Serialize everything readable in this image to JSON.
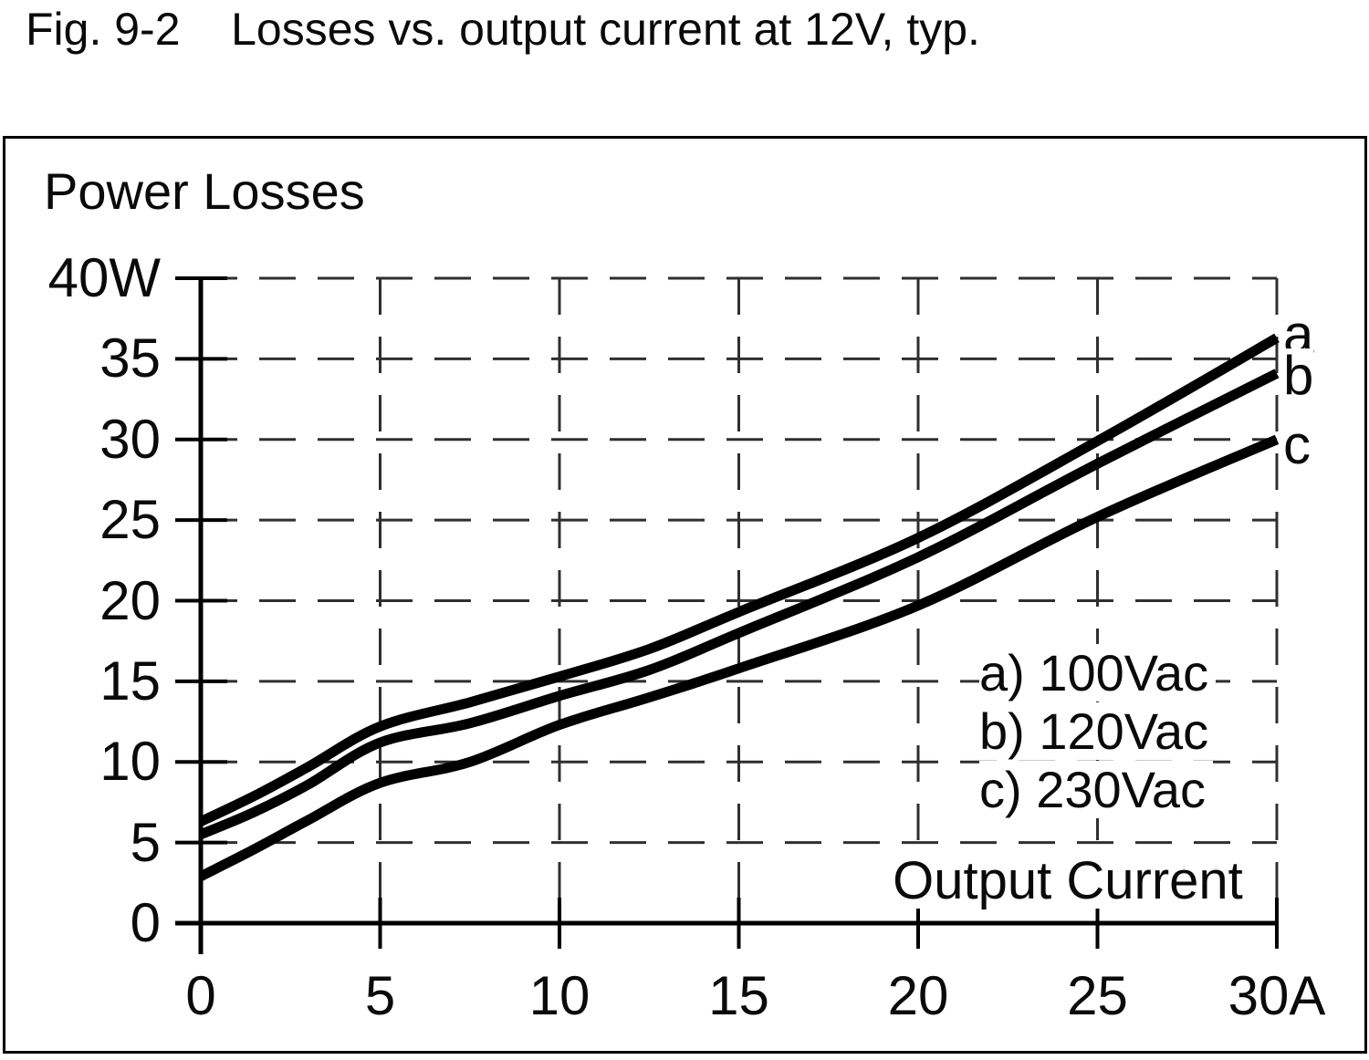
{
  "title": "Fig. 9-2    Losses vs. output current at 12V, typ.",
  "chart_data": {
    "type": "line",
    "title": "Power Losses",
    "xlabel": "Output Current",
    "ylabel": "Power Losses",
    "x_unit": "A",
    "y_unit": "W",
    "xlim": [
      0,
      30
    ],
    "ylim": [
      0,
      40
    ],
    "x_ticks": [
      0,
      5,
      10,
      15,
      20,
      25,
      30
    ],
    "x_tick_labels": [
      "0",
      "5",
      "10",
      "15",
      "20",
      "25",
      "30A"
    ],
    "y_ticks": [
      0,
      5,
      10,
      15,
      20,
      25,
      30,
      35,
      40
    ],
    "y_tick_labels": [
      "0",
      "5",
      "10",
      "15",
      "20",
      "25",
      "30",
      "35",
      "40W"
    ],
    "grid": "dashed",
    "legend_position": "inside-right",
    "x": [
      0,
      1.5,
      3,
      5,
      7.5,
      10,
      12.5,
      15,
      20,
      25,
      30
    ],
    "series": [
      {
        "name": "a",
        "label": "a) 100Vac",
        "values": [
          6.3,
          7.9,
          9.7,
          12.2,
          13.7,
          15.3,
          17.0,
          19.3,
          23.9,
          29.9,
          36.3
        ]
      },
      {
        "name": "b",
        "label": "b) 120Vac",
        "values": [
          5.5,
          6.9,
          8.6,
          11.2,
          12.4,
          14.1,
          15.7,
          18.0,
          22.7,
          28.5,
          34.1
        ]
      },
      {
        "name": "c",
        "label": "c) 230Vac",
        "values": [
          2.9,
          4.6,
          6.4,
          8.7,
          10.0,
          12.3,
          14.0,
          15.8,
          19.7,
          25.2,
          30.0
        ]
      }
    ],
    "colors": {
      "curve": "#000000",
      "grid": "#2f2f2f",
      "axis": "#000000",
      "text": "#0a0a0a",
      "background": "#ffffff"
    }
  }
}
